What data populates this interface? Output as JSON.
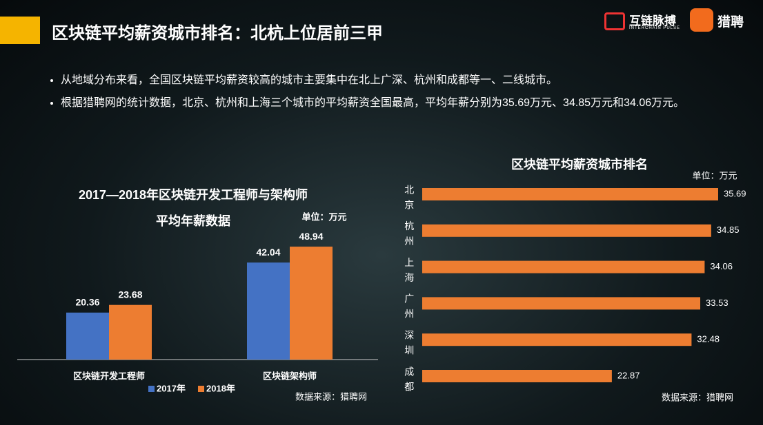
{
  "header": {
    "title": "区块链平均薪资城市排名：北杭上位居前三甲"
  },
  "logos": {
    "brand": "互链脉搏",
    "brand_sub": "INTERCHAIN PULSE",
    "recruiter": "猎聘"
  },
  "bullets": [
    "从地域分布来看，全国区块链平均薪资较高的城市主要集中在北上广深、杭州和成都等一、二线城市。",
    "根据猎聘网的统计数据，北京、杭州和上海三个城市的平均薪资全国最高，平均年薪分别为35.69万元、34.85万元和34.06万元。"
  ],
  "chart_data": [
    {
      "type": "bar",
      "title": "2017—2018年区块链开发工程师与架构师",
      "subtitle": "平均年薪数据",
      "unit": "单位：万元",
      "source": "数据来源：猎聘网",
      "categories": [
        "区块链开发工程师",
        "区块链架构师"
      ],
      "series": [
        {
          "name": "2017年",
          "color": "#4472c4",
          "values": [
            20.36,
            42.04
          ]
        },
        {
          "name": "2018年",
          "color": "#ed7d31",
          "values": [
            23.68,
            48.94
          ]
        }
      ]
    },
    {
      "type": "barh",
      "title": "区块链平均薪资城市排名",
      "unit": "单位：万元",
      "source": "数据来源：猎聘网",
      "categories": [
        "北京",
        "杭州",
        "上海",
        "广州",
        "深圳",
        "成都"
      ],
      "values": [
        35.69,
        34.85,
        34.06,
        33.53,
        32.48,
        22.87
      ],
      "color": "#ed7d31"
    }
  ]
}
